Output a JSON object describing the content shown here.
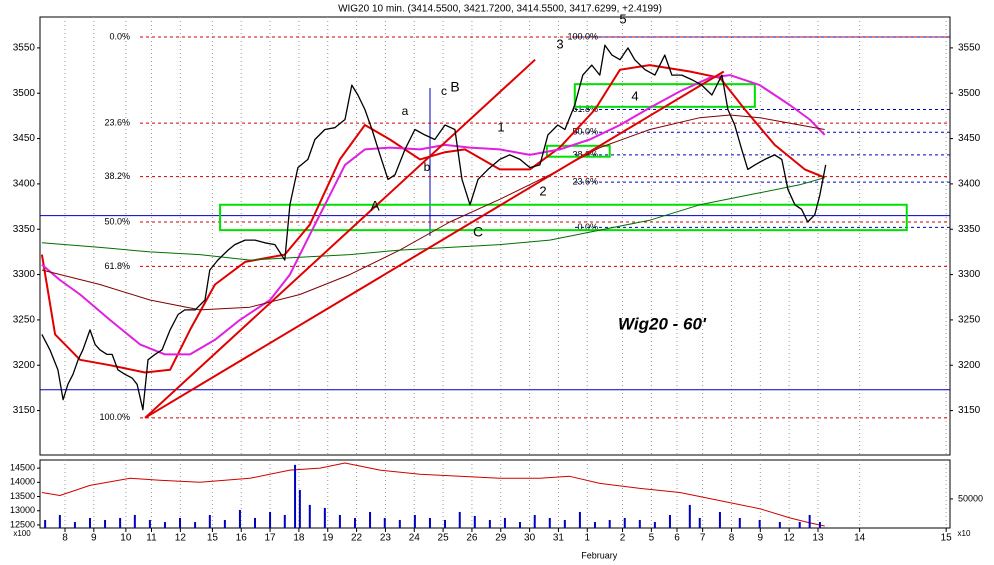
{
  "chart_data": [
    {
      "type": "line",
      "title": "WIG20 10 min. (3414.5500, 3421.7200, 3414.5500, 3417.6299, +2.4199)",
      "xlim": [
        -0.78,
        27.62
      ],
      "xticks": [
        {
          "value": 0,
          "label": "8"
        },
        {
          "value": 0.9,
          "label": "9"
        },
        {
          "value": 1.9,
          "label": "10"
        },
        {
          "value": 2.7,
          "label": "11"
        },
        {
          "value": 3.6,
          "label": "12"
        },
        {
          "value": 4.6,
          "label": "15"
        },
        {
          "value": 5.5,
          "label": "16"
        },
        {
          "value": 6.4,
          "label": "17"
        },
        {
          "value": 7.3,
          "label": "18"
        },
        {
          "value": 8.2,
          "label": "19"
        },
        {
          "value": 9.1,
          "label": "22"
        },
        {
          "value": 10.0,
          "label": "23"
        },
        {
          "value": 10.9,
          "label": "24"
        },
        {
          "value": 11.8,
          "label": "25"
        },
        {
          "value": 12.7,
          "label": "26"
        },
        {
          "value": 13.6,
          "label": "29"
        },
        {
          "value": 14.5,
          "label": "30"
        },
        {
          "value": 15.4,
          "label": "31"
        },
        {
          "value": 16.3,
          "label": "1"
        },
        {
          "value": 17.4,
          "label": "2"
        },
        {
          "value": 18.3,
          "label": "5"
        },
        {
          "value": 19.1,
          "label": "6"
        },
        {
          "value": 19.9,
          "label": "7"
        },
        {
          "value": 20.8,
          "label": "8"
        },
        {
          "value": 21.7,
          "label": "9"
        },
        {
          "value": 22.6,
          "label": "12"
        },
        {
          "value": 23.5,
          "label": "13"
        },
        {
          "value": 24.8,
          "label": "14"
        },
        {
          "value": 27.5,
          "label": "15"
        }
      ],
      "month_label": "February",
      "ylim": [
        3101,
        3594
      ],
      "yticks": [
        3150,
        3200,
        3250,
        3300,
        3350,
        3400,
        3450,
        3500,
        3550
      ],
      "grid": true,
      "series": [
        {
          "color": "#000000",
          "width": 1.3,
          "x": [
            -0.72,
            -0.47,
            -0.22,
            -0.06,
            0.09,
            0.25,
            0.41,
            0.56,
            0.78,
            0.94,
            1.09,
            1.31,
            1.47,
            1.65,
            1.87,
            2.09,
            2.25,
            2.43,
            2.59,
            2.81,
            3.03,
            3.28,
            3.53,
            3.74,
            4.06,
            4.37,
            4.52,
            4.77,
            5.09,
            5.3,
            5.62,
            5.93,
            6.24,
            6.55,
            6.86,
            7.02,
            7.27,
            7.58,
            7.8,
            8.11,
            8.42,
            8.74,
            8.95,
            9.14,
            9.36,
            9.58,
            9.83,
            10.08,
            10.3,
            10.61,
            10.92,
            11.23,
            11.54,
            11.86,
            12.17,
            12.39,
            12.64,
            12.89,
            13.2,
            13.57,
            13.88,
            14.2,
            14.51,
            14.82,
            15.07,
            15.38,
            15.6,
            15.91,
            16.16,
            16.44,
            16.69,
            16.85,
            17.07,
            17.32,
            17.57,
            17.78,
            18.1,
            18.41,
            18.72,
            18.94,
            19.25,
            19.56,
            19.87,
            20.19,
            20.5,
            20.69,
            20.9,
            21.12,
            21.31,
            21.53,
            21.84,
            22.15,
            22.37,
            22.56,
            22.78,
            22.99,
            23.18,
            23.4,
            23.56,
            23.74
          ],
          "values": [
            3234,
            3217,
            3195,
            3162,
            3179,
            3190,
            3206,
            3217,
            3239,
            3223,
            3217,
            3212,
            3212,
            3195,
            3190,
            3186,
            3179,
            3151,
            3206,
            3212,
            3217,
            3239,
            3256,
            3261,
            3261,
            3272,
            3305,
            3316,
            3327,
            3333,
            3338,
            3338,
            3335,
            3333,
            3316,
            3377,
            3418,
            3427,
            3449,
            3460,
            3462,
            3471,
            3509,
            3498,
            3482,
            3460,
            3432,
            3405,
            3410,
            3438,
            3460,
            3454,
            3449,
            3465,
            3460,
            3405,
            3377,
            3405,
            3416,
            3427,
            3432,
            3427,
            3418,
            3421,
            3454,
            3465,
            3460,
            3487,
            3520,
            3531,
            3520,
            3553,
            3542,
            3537,
            3550,
            3537,
            3526,
            3520,
            3542,
            3520,
            3520,
            3515,
            3509,
            3498,
            3520,
            3482,
            3465,
            3438,
            3416,
            3421,
            3427,
            3432,
            3427,
            3394,
            3377,
            3372,
            3358,
            3366,
            3388,
            3421
          ]
        },
        {
          "color": "#e00000",
          "width": 2,
          "x": [
            -0.72,
            -0.31,
            0.47,
            1.4,
            2.5,
            3.28,
            3.9,
            4.68,
            5.62,
            6.86,
            7.64,
            8.58,
            9.36,
            10.14,
            11.08,
            11.86,
            12.48,
            13.57,
            14.51,
            15.44,
            16.54,
            17.32,
            18.25,
            19.5,
            20.44,
            21.22,
            22.15,
            23.09,
            23.71
          ],
          "values": [
            3322,
            3234,
            3206,
            3200,
            3192,
            3195,
            3239,
            3289,
            3314,
            3322,
            3355,
            3427,
            3465,
            3449,
            3427,
            3435,
            3438,
            3416,
            3416,
            3440,
            3482,
            3526,
            3531,
            3524,
            3517,
            3482,
            3443,
            3416,
            3407
          ]
        },
        {
          "color": "#e020e0",
          "width": 2,
          "x": [
            -0.72,
            -0.16,
            0.47,
            1.4,
            2.34,
            3.12,
            3.9,
            4.68,
            5.46,
            6.4,
            7.02,
            7.64,
            8.27,
            8.74,
            9.36,
            10.14,
            11.08,
            11.86,
            12.64,
            13.57,
            14.51,
            15.44,
            16.38,
            17.32,
            18.25,
            19.19,
            20.12,
            20.75,
            21.68,
            22.62,
            23.24,
            23.71
          ],
          "values": [
            3311,
            3294,
            3278,
            3250,
            3223,
            3212,
            3212,
            3228,
            3250,
            3272,
            3300,
            3344,
            3388,
            3421,
            3438,
            3440,
            3438,
            3443,
            3440,
            3438,
            3432,
            3438,
            3449,
            3465,
            3484,
            3502,
            3517,
            3520,
            3509,
            3487,
            3471,
            3454
          ]
        },
        {
          "color": "#800000",
          "width": 1,
          "x": [
            -0.72,
            1.09,
            2.65,
            4.21,
            5.77,
            7.33,
            8.89,
            10.45,
            12.01,
            13.57,
            15.13,
            16.69,
            18.25,
            19.81,
            20.75,
            21.68,
            22.93,
            23.71
          ],
          "values": [
            3305,
            3289,
            3272,
            3261,
            3264,
            3278,
            3300,
            3327,
            3358,
            3383,
            3410,
            3440,
            3460,
            3473,
            3476,
            3473,
            3465,
            3460
          ]
        },
        {
          "color": "#007000",
          "width": 1,
          "x": [
            -0.72,
            1.09,
            2.65,
            4.21,
            5.77,
            7.33,
            8.89,
            10.45,
            12.01,
            13.57,
            15.13,
            16.69,
            18.25,
            19.81,
            21.37,
            22.93,
            23.71
          ],
          "values": [
            3335,
            3330,
            3325,
            3322,
            3316,
            3319,
            3322,
            3327,
            3330,
            3333,
            3338,
            3349,
            3360,
            3377,
            3388,
            3399,
            3407
          ]
        }
      ],
      "trendlines": [
        {
          "color": "#e00000",
          "x": [
            2.5,
            14.67
          ],
          "values": [
            3142,
            3537
          ]
        },
        {
          "color": "#e00000",
          "x": [
            2.5,
            20.56
          ],
          "values": [
            3142,
            3524
          ]
        }
      ],
      "fib_left": {
        "color": "#d00000",
        "levels": [
          {
            "value": 3562,
            "label": "0.0%"
          },
          {
            "value": 3467,
            "label": "23.6%"
          },
          {
            "value": 3408,
            "label": "38.2%"
          },
          {
            "value": 3358,
            "label": "50.0%"
          },
          {
            "value": 3309,
            "label": "61.8%"
          },
          {
            "value": 3142,
            "label": "100.0%"
          }
        ]
      },
      "fib_right": {
        "color": "#0000c0",
        "levels": [
          {
            "value": 3562,
            "label": "100.0%"
          },
          {
            "value": 3482,
            "label": "61.8%"
          },
          {
            "value": 3457,
            "label": "50.0%"
          },
          {
            "value": 3432,
            "label": "38.2%"
          },
          {
            "value": 3402,
            "label": "23.6%"
          },
          {
            "value": 3352,
            "label": "0.0%"
          }
        ]
      },
      "hlines": {
        "color": "#0000c0",
        "values": [
          3365,
          3173
        ]
      },
      "zones": {
        "color": "#00e000",
        "items": [
          {
            "x": [
              4.84,
              26.27
            ],
            "values": [
              3349,
              3377
            ]
          },
          {
            "x": [
              15.91,
              21.53
            ],
            "values": [
              3485,
              3510
            ]
          },
          {
            "x": [
              15.04,
              17.0
            ],
            "values": [
              3430,
              3442
            ]
          }
        ]
      },
      "annotations": [
        {
          "text": "A",
          "color": "#0000c0"
        },
        {
          "text": "B",
          "color": "#0000c0"
        },
        {
          "text": "C",
          "color": "#0000c0"
        },
        {
          "text": "a",
          "color": "#00c8d8"
        },
        {
          "text": "b",
          "color": "#00c8d8"
        },
        {
          "text": "c",
          "color": "#00c8d8"
        },
        {
          "text": "1",
          "color": "#00c8d8"
        },
        {
          "text": "2",
          "color": "#00c8d8"
        },
        {
          "text": "3",
          "color": "#00c8d8"
        },
        {
          "text": "4",
          "color": "#00c8d8"
        },
        {
          "text": "5",
          "color": "#00c8d8"
        },
        {
          "text": "Wig20 - 60'",
          "color": "#e00000"
        }
      ]
    },
    {
      "type": "bar",
      "xlim": [
        -0.78,
        27.62
      ],
      "ylim": [
        12393,
        14786
      ],
      "yticks": [
        12500,
        13000,
        13500,
        14000,
        14500
      ],
      "y_unit": "x100",
      "y2lim": [
        0,
        117000
      ],
      "y2ticks": [
        50000
      ],
      "y2_unit": "x10",
      "series": [
        {
          "type": "line",
          "color": "#d00000",
          "x": [
            -0.72,
            -0.16,
            0.78,
            2.03,
            2.96,
            4.21,
            5.77,
            7.02,
            7.96,
            8.74,
            9.83,
            11.08,
            12.32,
            13.57,
            14.82,
            15.75,
            16.69,
            17.94,
            19.19,
            20.44,
            21.68,
            22.62,
            23.24,
            23.71
          ],
          "values": [
            13643,
            13536,
            13893,
            14143,
            14071,
            14000,
            14143,
            14429,
            14500,
            14679,
            14429,
            14286,
            14214,
            14143,
            14143,
            14214,
            13964,
            13786,
            13643,
            13357,
            13071,
            12750,
            12571,
            12464
          ]
        },
        {
          "type": "bar",
          "axis": "y2",
          "color": "#0000c0",
          "x": [
            -0.62,
            -0.16,
            0.31,
            0.78,
            1.25,
            1.72,
            2.18,
            2.65,
            3.12,
            3.59,
            4.06,
            4.52,
            4.99,
            5.46,
            5.93,
            6.4,
            6.86,
            7.18,
            7.33,
            7.64,
            8.11,
            8.58,
            9.05,
            9.52,
            9.98,
            10.45,
            10.92,
            11.39,
            11.86,
            12.32,
            12.79,
            13.26,
            13.73,
            14.2,
            14.66,
            15.13,
            15.6,
            16.07,
            16.54,
            17.0,
            17.47,
            17.94,
            18.41,
            18.88,
            19.5,
            19.81,
            20.44,
            21.06,
            21.68,
            22.31,
            22.93,
            23.24,
            23.56
          ],
          "values": [
            13800,
            22400,
            10300,
            17200,
            13800,
            17200,
            22400,
            13800,
            10300,
            17200,
            10300,
            22400,
            13800,
            31000,
            17200,
            27600,
            22400,
            108600,
            65500,
            39700,
            34500,
            22400,
            17200,
            27600,
            17200,
            13800,
            22400,
            17200,
            13800,
            27600,
            20700,
            13800,
            17200,
            10300,
            22400,
            17200,
            13800,
            27600,
            10300,
            13800,
            17200,
            13800,
            10300,
            22400,
            39700,
            17200,
            27600,
            17200,
            13800,
            10300,
            10300,
            22400,
            10300
          ]
        }
      ]
    }
  ]
}
